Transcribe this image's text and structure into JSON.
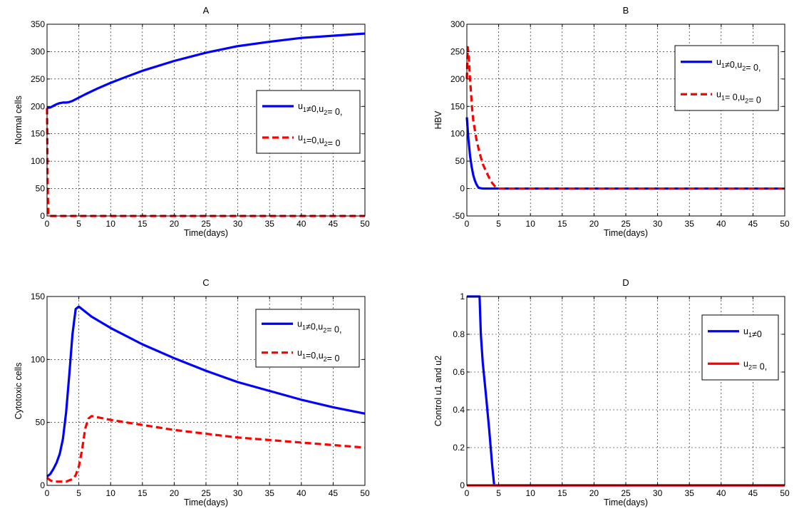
{
  "chart_data": [
    {
      "type": "line",
      "title": "A",
      "xlabel": "Time(days)",
      "ylabel": "Normal cells",
      "xlim": [
        0,
        50
      ],
      "ylim": [
        0,
        350
      ],
      "xticks": [
        0,
        5,
        10,
        15,
        20,
        25,
        30,
        35,
        40,
        45,
        50
      ],
      "yticks": [
        0,
        50,
        100,
        150,
        200,
        250,
        300,
        350
      ],
      "grid": true,
      "legend_position": "center-right",
      "series": [
        {
          "name": "u1≠0,u2= 0,",
          "label_parts": [
            "u",
            "1",
            "≠0,u",
            "2",
            "= 0,"
          ],
          "color": "#0000ff",
          "dash": "solid",
          "x": [
            0,
            0.5,
            1,
            1.5,
            2,
            2.5,
            3,
            3.5,
            4,
            5,
            6,
            8,
            10,
            12,
            15,
            20,
            25,
            30,
            35,
            40,
            45,
            50
          ],
          "y": [
            197,
            198,
            201,
            204,
            206,
            207,
            207,
            208,
            210,
            216,
            222,
            233,
            243,
            252,
            265,
            283,
            298,
            310,
            318,
            325,
            329,
            333
          ]
        },
        {
          "name": "u1=0,u2= 0",
          "label_parts": [
            "u",
            "1",
            "=0,u",
            "2",
            "= 0"
          ],
          "color": "#ff0000",
          "dash": "dashed",
          "x": [
            0,
            0.1,
            0.2,
            1,
            5,
            10,
            20,
            30,
            40,
            50
          ],
          "y": [
            197,
            60,
            0,
            0,
            0,
            0,
            0,
            0,
            0,
            0
          ]
        }
      ]
    },
    {
      "type": "line",
      "title": "B",
      "xlabel": "Time(days)",
      "ylabel": "HBV",
      "xlim": [
        0,
        50
      ],
      "ylim": [
        -50,
        300
      ],
      "xticks": [
        0,
        5,
        10,
        15,
        20,
        25,
        30,
        35,
        40,
        45,
        50
      ],
      "yticks": [
        -50,
        0,
        50,
        100,
        150,
        200,
        250,
        300
      ],
      "grid": true,
      "legend_position": "top-right",
      "series": [
        {
          "name": "u1≠0,u2= 0,",
          "label_parts": [
            "u",
            "1",
            "≠0,u",
            "2",
            "= 0,"
          ],
          "color": "#0000ff",
          "dash": "solid",
          "x": [
            0,
            0.25,
            0.5,
            0.75,
            1,
            1.25,
            1.5,
            1.75,
            2,
            2.5,
            3,
            4,
            5,
            10,
            20,
            30,
            40,
            50
          ],
          "y": [
            130,
            90,
            60,
            40,
            25,
            15,
            8,
            3,
            1,
            0,
            0,
            0,
            0,
            0,
            0,
            0,
            0,
            0
          ]
        },
        {
          "name": "u1= 0,u2= 0",
          "label_parts": [
            "u",
            "1",
            "= 0,u",
            "2",
            "= 0"
          ],
          "color": "#ff0000",
          "dash": "dashed",
          "x": [
            0,
            0.15,
            0.3,
            0.5,
            0.8,
            1,
            1.5,
            2,
            2.5,
            3,
            3.5,
            4,
            4.5,
            5,
            6,
            10,
            20,
            30,
            40,
            50
          ],
          "y": [
            200,
            258,
            240,
            200,
            150,
            125,
            90,
            65,
            45,
            32,
            20,
            10,
            3,
            0,
            0,
            0,
            0,
            0,
            0,
            0
          ]
        }
      ]
    },
    {
      "type": "line",
      "title": "C",
      "xlabel": "Time(days)",
      "ylabel": "Cytotoxic cells",
      "xlim": [
        0,
        50
      ],
      "ylim": [
        0,
        150
      ],
      "xticks": [
        0,
        5,
        10,
        15,
        20,
        25,
        30,
        35,
        40,
        45,
        50
      ],
      "yticks": [
        0,
        50,
        100,
        150
      ],
      "grid": true,
      "legend_position": "top-right",
      "series": [
        {
          "name": "u1≠0,u2= 0,",
          "label_parts": [
            "u",
            "1",
            "≠0,u",
            "2",
            "= 0,"
          ],
          "color": "#0000ff",
          "dash": "solid",
          "x": [
            0,
            0.5,
            1,
            1.5,
            2,
            2.5,
            3,
            3.5,
            4,
            4.5,
            5,
            7,
            10,
            15,
            20,
            25,
            30,
            35,
            40,
            45,
            50
          ],
          "y": [
            7,
            9,
            13,
            18,
            25,
            37,
            58,
            88,
            120,
            140,
            142,
            134,
            125,
            112,
            101,
            91,
            82,
            75,
            68,
            62,
            57
          ]
        },
        {
          "name": "u1=0,u2= 0",
          "label_parts": [
            "u",
            "1",
            "=0,u",
            "2",
            "= 0"
          ],
          "color": "#ff0000",
          "dash": "dashed",
          "x": [
            0,
            0.5,
            1,
            2,
            3,
            4,
            4.5,
            5,
            5.5,
            6,
            6.5,
            7,
            8,
            10,
            15,
            20,
            25,
            30,
            35,
            40,
            45,
            50
          ],
          "y": [
            6,
            4,
            3,
            3,
            3,
            5,
            8,
            15,
            28,
            45,
            53,
            55,
            54,
            52,
            48,
            44,
            41,
            38,
            36,
            34,
            32,
            30
          ]
        }
      ]
    },
    {
      "type": "line",
      "title": "D",
      "xlabel": "Time(days)",
      "ylabel": "Control u1 and u2",
      "xlim": [
        0,
        50
      ],
      "ylim": [
        0,
        1
      ],
      "xticks": [
        0,
        5,
        10,
        15,
        20,
        25,
        30,
        35,
        40,
        45,
        50
      ],
      "yticks": [
        0,
        0.2,
        0.4,
        0.6,
        0.8,
        1
      ],
      "grid": true,
      "legend_position": "top-right",
      "series": [
        {
          "name": "u1≠0",
          "label_parts": [
            "u",
            "1",
            "≠0",
            "",
            ""
          ],
          "color": "#0000ff",
          "dash": "solid",
          "x": [
            0,
            1.5,
            2,
            2.2,
            2.5,
            3,
            3.5,
            4,
            4.3,
            5,
            10,
            20,
            30,
            40,
            50
          ],
          "y": [
            1,
            1,
            1,
            0.8,
            0.65,
            0.48,
            0.3,
            0.1,
            0,
            0,
            0,
            0,
            0,
            0,
            0
          ]
        },
        {
          "name": "u2= 0,",
          "label_parts": [
            "u",
            "2",
            "= 0,",
            "",
            ""
          ],
          "color": "#ff0000",
          "dash": "solid",
          "x": [
            0,
            10,
            20,
            30,
            40,
            50
          ],
          "y": [
            0,
            0,
            0,
            0,
            0,
            0
          ]
        }
      ]
    }
  ]
}
